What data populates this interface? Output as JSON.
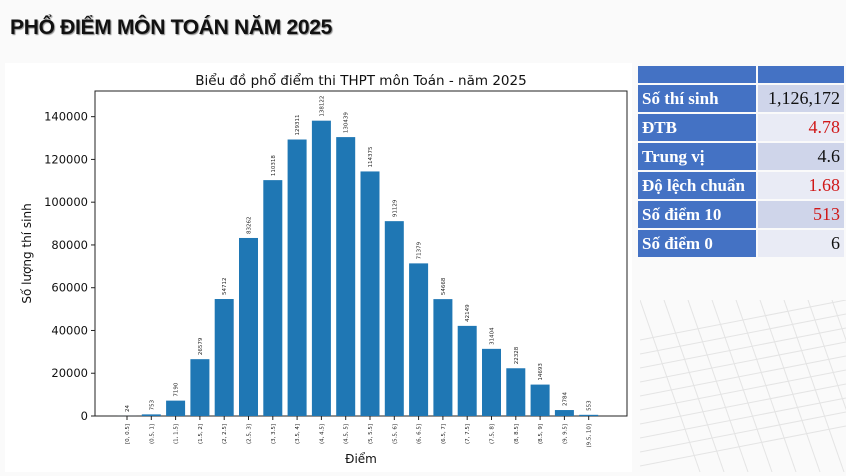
{
  "page_title": "PHỔ ĐIỂM MÔN TOÁN NĂM 2025",
  "chart_data": {
    "type": "bar",
    "title": "Biểu đồ phổ điểm thi THPT môn Toán - năm 2025",
    "xlabel": "Điểm",
    "ylabel": "Số lượng thí sinh",
    "categories": [
      "[0, 0.5]",
      "(0.5, 1]",
      "(1, 1.5]",
      "(1.5, 2]",
      "(2, 2.5]",
      "(2.5, 3]",
      "(3, 3.5]",
      "(3.5, 4]",
      "(4, 4.5]",
      "(4.5, 5]",
      "(5, 5.5]",
      "(5.5, 6]",
      "(6, 6.5]",
      "(6.5, 7]",
      "(7, 7.5]",
      "(7.5, 8]",
      "(8, 8.5]",
      "(8.5, 9]",
      "(9, 9.5]",
      "(9.5, 10]"
    ],
    "values": [
      24,
      753,
      7190,
      26579,
      54712,
      83262,
      110318,
      129311,
      138122,
      130439,
      114375,
      91129,
      71379,
      54668,
      42149,
      31404,
      22328,
      14693,
      2784,
      553
    ],
    "ylim": [
      0,
      152000
    ],
    "yticks": [
      0,
      20000,
      40000,
      60000,
      80000,
      100000,
      120000,
      140000
    ],
    "grid": false,
    "bar_color": "#1f77b4"
  },
  "stats_table": {
    "rows": [
      {
        "label": "Số thí sinh",
        "value": "1,126,172",
        "highlight": false
      },
      {
        "label": "ĐTB",
        "value": "4.78",
        "highlight": true
      },
      {
        "label": "Trung vị",
        "value": "4.6",
        "highlight": false
      },
      {
        "label": "Độ lệch chuẩn",
        "value": "1.68",
        "highlight": true
      },
      {
        "label": "Số điểm 10",
        "value": "513",
        "highlight": true
      },
      {
        "label": "Số điểm 0",
        "value": "6",
        "highlight": false
      }
    ],
    "header_color": "#4472c4",
    "highlight_color": "#d01818"
  }
}
